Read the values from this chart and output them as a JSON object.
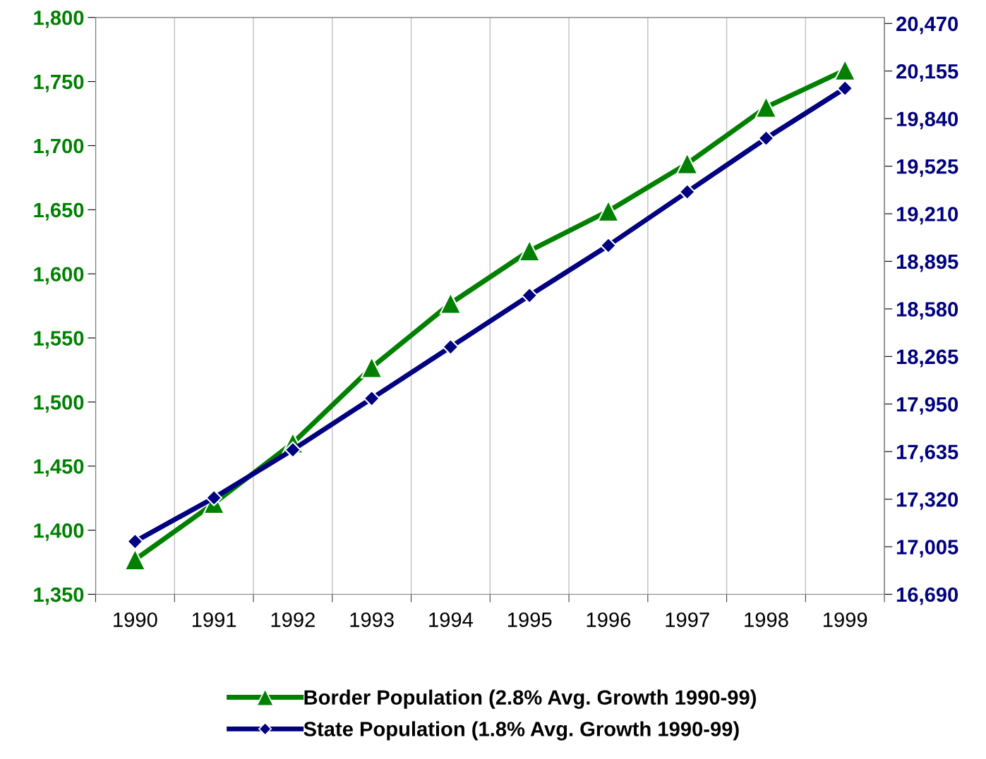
{
  "chart_data": {
    "type": "line",
    "categories": [
      "1990",
      "1991",
      "1992",
      "1993",
      "1994",
      "1995",
      "1996",
      "1997",
      "1998",
      "1999"
    ],
    "series": [
      {
        "name": "Border Population (2.8% Avg. Growth 1990-99)",
        "color": "#008000",
        "marker": "triangle",
        "values": [
          1377,
          1421,
          1468,
          1527,
          1577,
          1618,
          1649,
          1686,
          1730,
          1759
        ]
      },
      {
        "name": "State Population (1.8% Avg. Growth 1990-99)",
        "color": "#000080",
        "marker": "diamond",
        "axis": "y2",
        "values": [
          17040,
          17329,
          17647,
          17987,
          18328,
          18669,
          19000,
          19355,
          19710,
          20041
        ]
      }
    ],
    "ylim": [
      1350,
      1800
    ],
    "yticks": [
      {
        "value": 1350,
        "label": "1,350"
      },
      {
        "value": 1400,
        "label": "1,400"
      },
      {
        "value": 1450,
        "label": "1,450"
      },
      {
        "value": 1500,
        "label": "1,500"
      },
      {
        "value": 1550,
        "label": "1,550"
      },
      {
        "value": 1600,
        "label": "1,600"
      },
      {
        "value": 1650,
        "label": "1,650"
      },
      {
        "value": 1700,
        "label": "1,700"
      },
      {
        "value": 1750,
        "label": "1,750"
      },
      {
        "value": 1800,
        "label": "1,800"
      }
    ],
    "y2lim": [
      16690,
      20510
    ],
    "y2ticks": [
      {
        "value": 16690,
        "label": "16,690"
      },
      {
        "value": 17005,
        "label": "17,005"
      },
      {
        "value": 17320,
        "label": "17,320"
      },
      {
        "value": 17635,
        "label": "17,635"
      },
      {
        "value": 17950,
        "label": "17,950"
      },
      {
        "value": 18265,
        "label": "18,265"
      },
      {
        "value": 18580,
        "label": "18,580"
      },
      {
        "value": 18895,
        "label": "18,895"
      },
      {
        "value": 19210,
        "label": "19,210"
      },
      {
        "value": 19525,
        "label": "19,525"
      },
      {
        "value": 19840,
        "label": "19,840"
      },
      {
        "value": 20155,
        "label": "20,155"
      },
      {
        "value": 20470,
        "label": "20,470"
      }
    ],
    "grid": "x",
    "legend": "bottom",
    "line_style": "solid"
  }
}
